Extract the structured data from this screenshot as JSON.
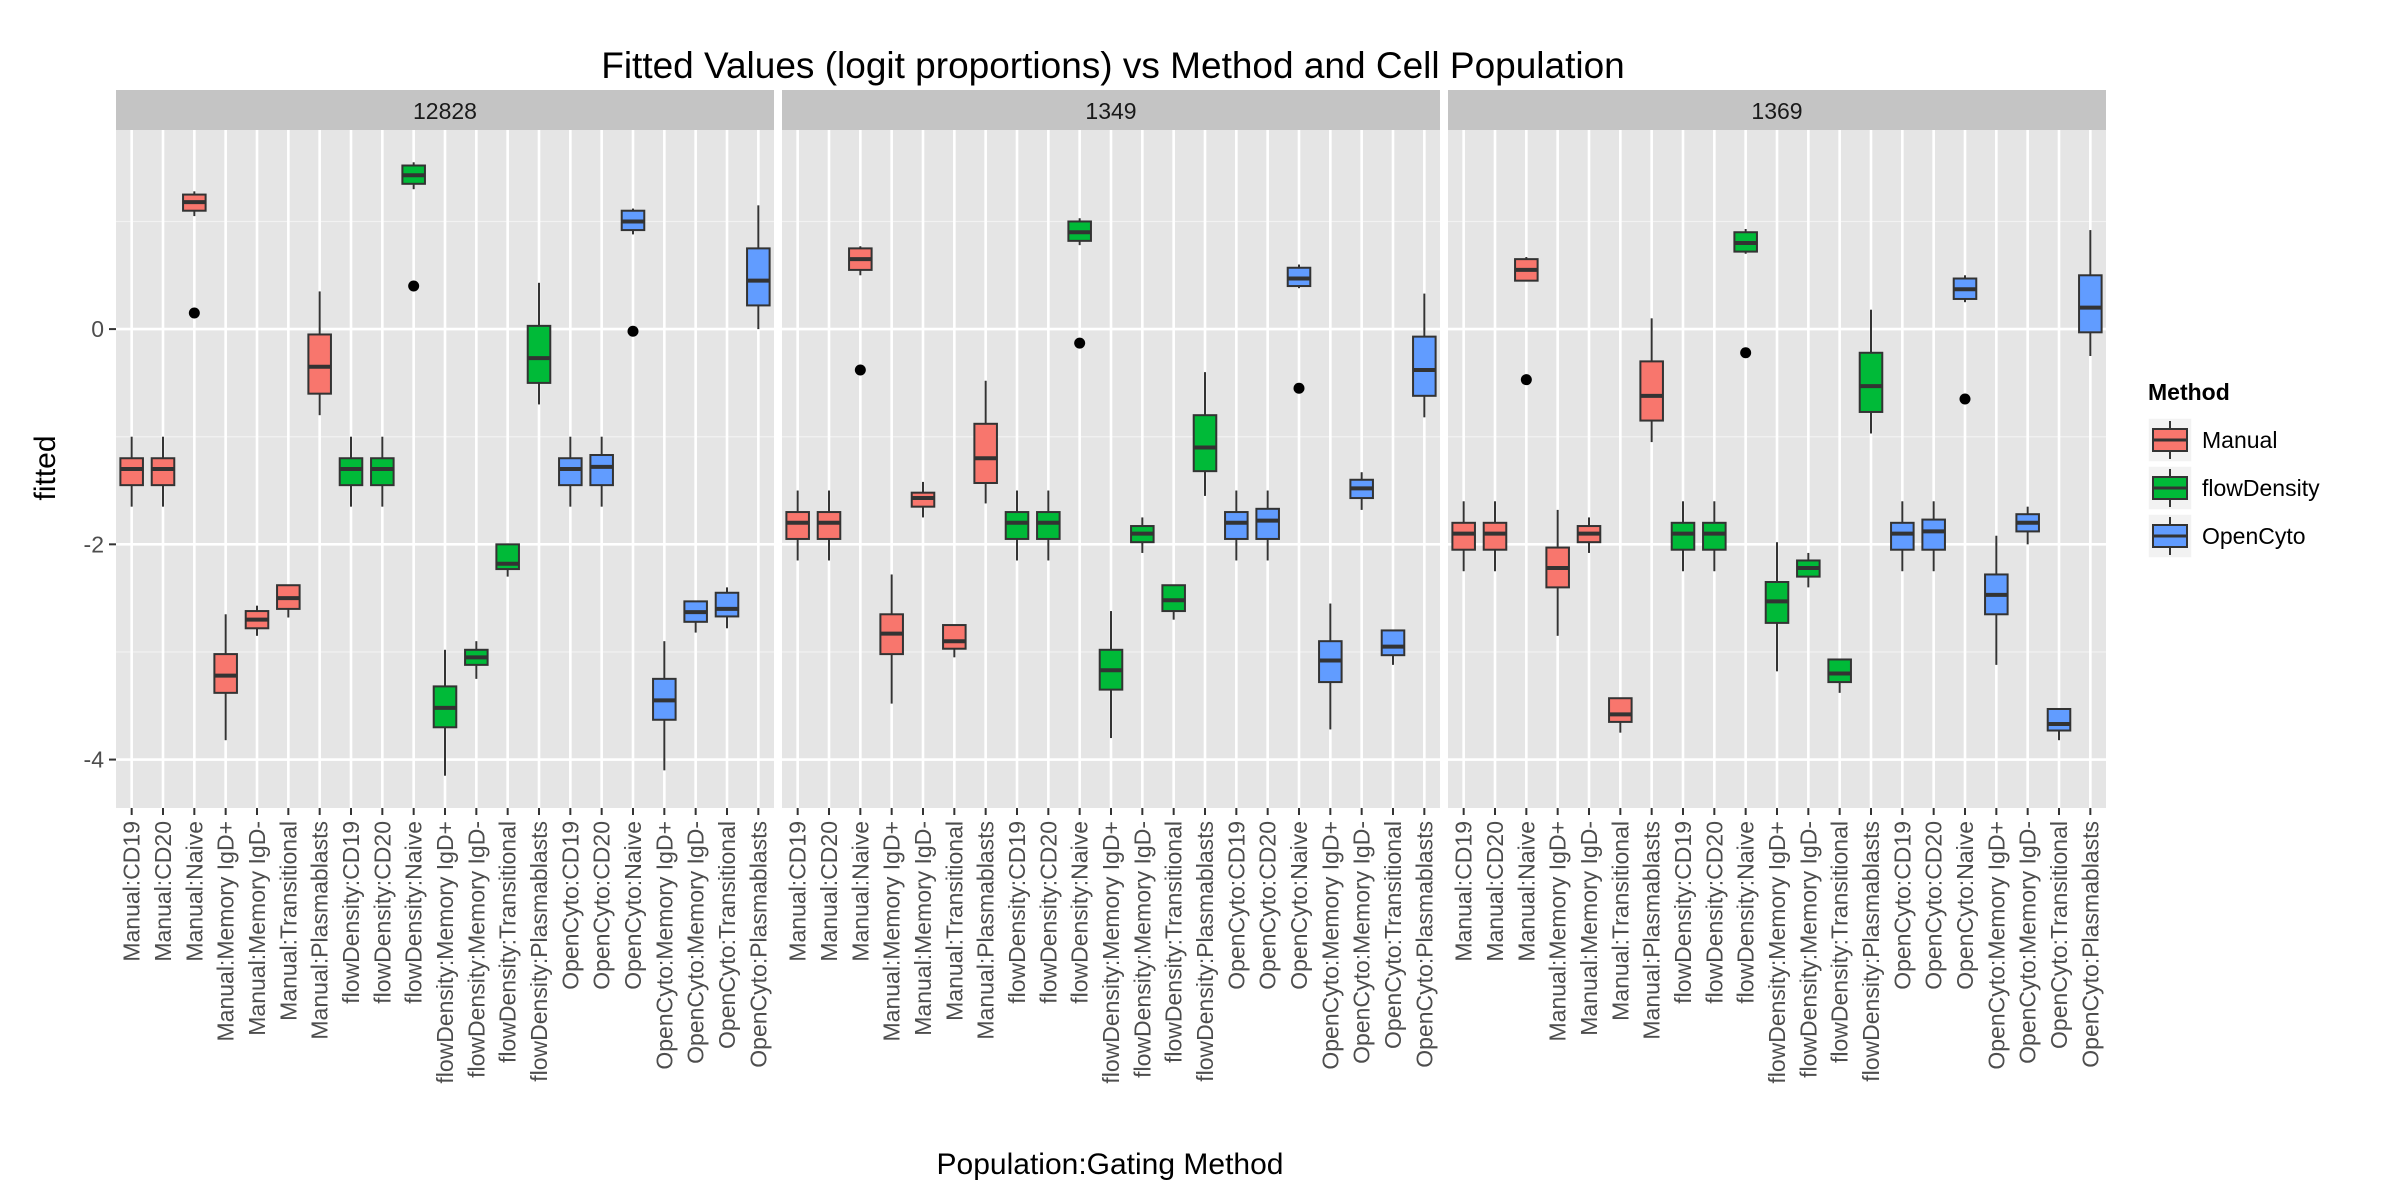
{
  "chart_data": {
    "type": "boxplot",
    "title": "Fitted Values (logit proportions) vs Method and Cell Population",
    "xlabel": "Population:Gating Method",
    "ylabel": "fitted",
    "ylim": [
      -4.45,
      1.85
    ],
    "yticks": [
      0,
      -2,
      -4
    ],
    "ytick_labels": [
      "0",
      "-2",
      "-4"
    ],
    "grid": true,
    "legend": {
      "title": "Method",
      "position": "right",
      "entries": [
        {
          "label": "Manual",
          "color": "#F8766D"
        },
        {
          "label": "flowDensity",
          "color": "#00BA38"
        },
        {
          "label": "OpenCyto",
          "color": "#619CFF"
        }
      ]
    },
    "method_colors": {
      "Manual": "#F8766D",
      "flowDensity": "#00BA38",
      "OpenCyto": "#619CFF"
    },
    "categories": [
      "Manual:CD19",
      "Manual:CD20",
      "Manual:Naive",
      "Manual:Memory IgD+",
      "Manual:Memory IgD-",
      "Manual:Transitional",
      "Manual:Plasmablasts",
      "flowDensity:CD19",
      "flowDensity:CD20",
      "flowDensity:Naive",
      "flowDensity:Memory IgD+",
      "flowDensity:Memory IgD-",
      "flowDensity:Transitional",
      "flowDensity:Plasmablasts",
      "OpenCyto:CD19",
      "OpenCyto:CD20",
      "OpenCyto:Naive",
      "OpenCyto:Memory IgD+",
      "OpenCyto:Memory IgD-",
      "OpenCyto:Transitional",
      "OpenCyto:Plasmablasts"
    ],
    "category_methods": [
      "Manual",
      "Manual",
      "Manual",
      "Manual",
      "Manual",
      "Manual",
      "Manual",
      "flowDensity",
      "flowDensity",
      "flowDensity",
      "flowDensity",
      "flowDensity",
      "flowDensity",
      "flowDensity",
      "OpenCyto",
      "OpenCyto",
      "OpenCyto",
      "OpenCyto",
      "OpenCyto",
      "OpenCyto",
      "OpenCyto"
    ],
    "panels": [
      {
        "label": "12828",
        "boxes": [
          {
            "lw": -1.65,
            "q1": -1.45,
            "med": -1.3,
            "q3": -1.2,
            "uw": -1.0,
            "out": []
          },
          {
            "lw": -1.65,
            "q1": -1.45,
            "med": -1.3,
            "q3": -1.2,
            "uw": -1.0,
            "out": []
          },
          {
            "lw": 1.05,
            "q1": 1.1,
            "med": 1.18,
            "q3": 1.25,
            "uw": 1.28,
            "out": [
              0.15
            ]
          },
          {
            "lw": -3.82,
            "q1": -3.38,
            "med": -3.22,
            "q3": -3.02,
            "uw": -2.65,
            "out": []
          },
          {
            "lw": -2.85,
            "q1": -2.78,
            "med": -2.7,
            "q3": -2.62,
            "uw": -2.57,
            "out": []
          },
          {
            "lw": -2.68,
            "q1": -2.6,
            "med": -2.5,
            "q3": -2.38,
            "uw": -2.38,
            "out": []
          },
          {
            "lw": -0.8,
            "q1": -0.6,
            "med": -0.35,
            "q3": -0.05,
            "uw": 0.35,
            "out": []
          },
          {
            "lw": -1.65,
            "q1": -1.45,
            "med": -1.3,
            "q3": -1.2,
            "uw": -1.0,
            "out": []
          },
          {
            "lw": -1.65,
            "q1": -1.45,
            "med": -1.3,
            "q3": -1.2,
            "uw": -1.0,
            "out": []
          },
          {
            "lw": 1.3,
            "q1": 1.35,
            "med": 1.43,
            "q3": 1.52,
            "uw": 1.55,
            "out": [
              0.4
            ]
          },
          {
            "lw": -4.15,
            "q1": -3.7,
            "med": -3.52,
            "q3": -3.32,
            "uw": -2.98,
            "out": []
          },
          {
            "lw": -3.25,
            "q1": -3.12,
            "med": -3.05,
            "q3": -2.98,
            "uw": -2.9,
            "out": []
          },
          {
            "lw": -2.3,
            "q1": -2.23,
            "med": -2.18,
            "q3": -2.0,
            "uw": -2.0,
            "out": []
          },
          {
            "lw": -0.7,
            "q1": -0.5,
            "med": -0.27,
            "q3": 0.03,
            "uw": 0.43,
            "out": []
          },
          {
            "lw": -1.65,
            "q1": -1.45,
            "med": -1.3,
            "q3": -1.2,
            "uw": -1.0,
            "out": []
          },
          {
            "lw": -1.65,
            "q1": -1.45,
            "med": -1.28,
            "q3": -1.17,
            "uw": -1.0,
            "out": []
          },
          {
            "lw": 0.88,
            "q1": 0.92,
            "med": 1.0,
            "q3": 1.1,
            "uw": 1.12,
            "out": [
              -0.02
            ]
          },
          {
            "lw": -4.1,
            "q1": -3.63,
            "med": -3.45,
            "q3": -3.25,
            "uw": -2.9,
            "out": []
          },
          {
            "lw": -2.82,
            "q1": -2.72,
            "med": -2.63,
            "q3": -2.53,
            "uw": -2.53,
            "out": []
          },
          {
            "lw": -2.78,
            "q1": -2.67,
            "med": -2.6,
            "q3": -2.45,
            "uw": -2.4,
            "out": []
          },
          {
            "lw": 0.0,
            "q1": 0.22,
            "med": 0.45,
            "q3": 0.75,
            "uw": 1.15,
            "out": []
          }
        ]
      },
      {
        "label": "1349",
        "boxes": [
          {
            "lw": -2.15,
            "q1": -1.95,
            "med": -1.8,
            "q3": -1.7,
            "uw": -1.5,
            "out": []
          },
          {
            "lw": -2.15,
            "q1": -1.95,
            "med": -1.8,
            "q3": -1.7,
            "uw": -1.5,
            "out": []
          },
          {
            "lw": 0.5,
            "q1": 0.55,
            "med": 0.65,
            "q3": 0.75,
            "uw": 0.77,
            "out": [
              -0.38
            ]
          },
          {
            "lw": -3.48,
            "q1": -3.02,
            "med": -2.83,
            "q3": -2.65,
            "uw": -2.28,
            "out": []
          },
          {
            "lw": -1.75,
            "q1": -1.65,
            "med": -1.57,
            "q3": -1.52,
            "uw": -1.42,
            "out": []
          },
          {
            "lw": -3.05,
            "q1": -2.97,
            "med": -2.9,
            "q3": -2.75,
            "uw": -2.75,
            "out": []
          },
          {
            "lw": -1.62,
            "q1": -1.43,
            "med": -1.2,
            "q3": -0.88,
            "uw": -0.48,
            "out": []
          },
          {
            "lw": -2.15,
            "q1": -1.95,
            "med": -1.8,
            "q3": -1.7,
            "uw": -1.5,
            "out": []
          },
          {
            "lw": -2.15,
            "q1": -1.95,
            "med": -1.8,
            "q3": -1.7,
            "uw": -1.5,
            "out": []
          },
          {
            "lw": 0.78,
            "q1": 0.82,
            "med": 0.9,
            "q3": 1.0,
            "uw": 1.03,
            "out": [
              -0.13
            ]
          },
          {
            "lw": -3.8,
            "q1": -3.35,
            "med": -3.17,
            "q3": -2.98,
            "uw": -2.62,
            "out": []
          },
          {
            "lw": -2.08,
            "q1": -1.98,
            "med": -1.9,
            "q3": -1.83,
            "uw": -1.75,
            "out": []
          },
          {
            "lw": -2.7,
            "q1": -2.62,
            "med": -2.52,
            "q3": -2.38,
            "uw": -2.38,
            "out": []
          },
          {
            "lw": -1.55,
            "q1": -1.32,
            "med": -1.1,
            "q3": -0.8,
            "uw": -0.4,
            "out": []
          },
          {
            "lw": -2.15,
            "q1": -1.95,
            "med": -1.8,
            "q3": -1.7,
            "uw": -1.5,
            "out": []
          },
          {
            "lw": -2.15,
            "q1": -1.95,
            "med": -1.78,
            "q3": -1.67,
            "uw": -1.5,
            "out": []
          },
          {
            "lw": 0.38,
            "q1": 0.4,
            "med": 0.47,
            "q3": 0.57,
            "uw": 0.6,
            "out": [
              -0.55
            ]
          },
          {
            "lw": -3.72,
            "q1": -3.28,
            "med": -3.08,
            "q3": -2.9,
            "uw": -2.55,
            "out": []
          },
          {
            "lw": -1.68,
            "q1": -1.57,
            "med": -1.48,
            "q3": -1.4,
            "uw": -1.33,
            "out": []
          },
          {
            "lw": -3.12,
            "q1": -3.03,
            "med": -2.95,
            "q3": -2.8,
            "uw": -2.8,
            "out": []
          },
          {
            "lw": -0.82,
            "q1": -0.62,
            "med": -0.38,
            "q3": -0.07,
            "uw": 0.33,
            "out": []
          }
        ]
      },
      {
        "label": "1369",
        "boxes": [
          {
            "lw": -2.25,
            "q1": -2.05,
            "med": -1.9,
            "q3": -1.8,
            "uw": -1.6,
            "out": []
          },
          {
            "lw": -2.25,
            "q1": -2.05,
            "med": -1.9,
            "q3": -1.8,
            "uw": -1.6,
            "out": []
          },
          {
            "lw": 0.45,
            "q1": 0.45,
            "med": 0.55,
            "q3": 0.65,
            "uw": 0.67,
            "out": [
              -0.47
            ]
          },
          {
            "lw": -2.85,
            "q1": -2.4,
            "med": -2.22,
            "q3": -2.03,
            "uw": -1.68,
            "out": []
          },
          {
            "lw": -2.08,
            "q1": -1.98,
            "med": -1.9,
            "q3": -1.83,
            "uw": -1.75,
            "out": []
          },
          {
            "lw": -3.75,
            "q1": -3.65,
            "med": -3.58,
            "q3": -3.43,
            "uw": -3.43,
            "out": []
          },
          {
            "lw": -1.05,
            "q1": -0.85,
            "med": -0.62,
            "q3": -0.3,
            "uw": 0.1,
            "out": []
          },
          {
            "lw": -2.25,
            "q1": -2.05,
            "med": -1.9,
            "q3": -1.8,
            "uw": -1.6,
            "out": []
          },
          {
            "lw": -2.25,
            "q1": -2.05,
            "med": -1.9,
            "q3": -1.8,
            "uw": -1.6,
            "out": []
          },
          {
            "lw": 0.7,
            "q1": 0.72,
            "med": 0.8,
            "q3": 0.9,
            "uw": 0.93,
            "out": [
              -0.22
            ]
          },
          {
            "lw": -3.18,
            "q1": -2.73,
            "med": -2.53,
            "q3": -2.35,
            "uw": -1.98,
            "out": []
          },
          {
            "lw": -2.4,
            "q1": -2.3,
            "med": -2.22,
            "q3": -2.15,
            "uw": -2.08,
            "out": []
          },
          {
            "lw": -3.38,
            "q1": -3.28,
            "med": -3.2,
            "q3": -3.07,
            "uw": -3.07,
            "out": []
          },
          {
            "lw": -0.97,
            "q1": -0.77,
            "med": -0.53,
            "q3": -0.22,
            "uw": 0.18,
            "out": []
          },
          {
            "lw": -2.25,
            "q1": -2.05,
            "med": -1.9,
            "q3": -1.8,
            "uw": -1.6,
            "out": []
          },
          {
            "lw": -2.25,
            "q1": -2.05,
            "med": -1.88,
            "q3": -1.77,
            "uw": -1.6,
            "out": []
          },
          {
            "lw": 0.25,
            "q1": 0.28,
            "med": 0.37,
            "q3": 0.47,
            "uw": 0.5,
            "out": [
              -0.65
            ]
          },
          {
            "lw": -3.12,
            "q1": -2.65,
            "med": -2.47,
            "q3": -2.28,
            "uw": -1.92,
            "out": []
          },
          {
            "lw": -2.0,
            "q1": -1.88,
            "med": -1.8,
            "q3": -1.72,
            "uw": -1.65,
            "out": []
          },
          {
            "lw": -3.82,
            "q1": -3.73,
            "med": -3.67,
            "q3": -3.53,
            "uw": -3.53,
            "out": []
          },
          {
            "lw": -0.25,
            "q1": -0.03,
            "med": 0.2,
            "q3": 0.5,
            "uw": 0.92,
            "out": []
          }
        ]
      }
    ]
  }
}
